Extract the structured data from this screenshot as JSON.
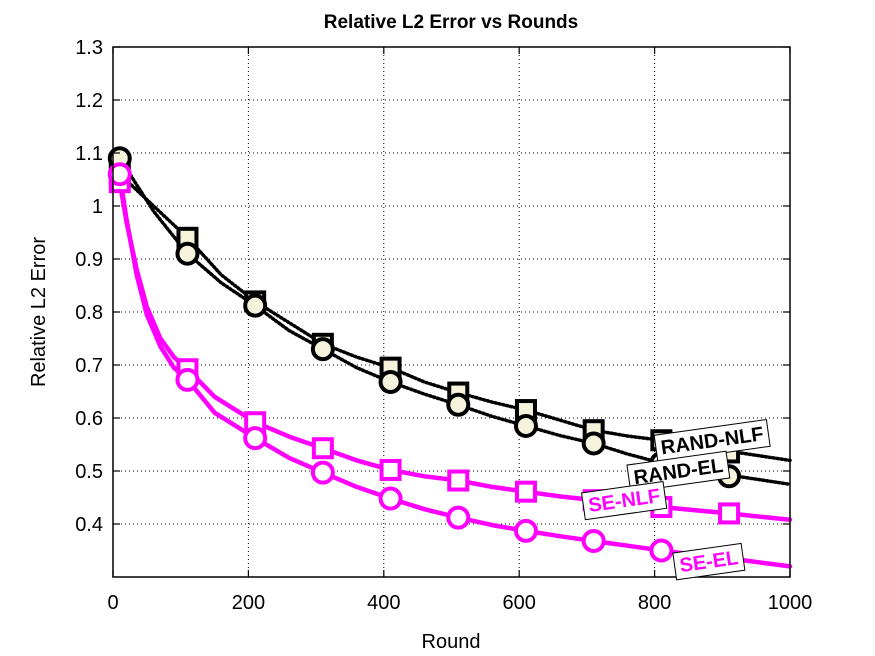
{
  "chart_data": {
    "type": "line",
    "title": "Relative L2 Error vs Rounds",
    "xlabel": "Round",
    "ylabel": "Relative L2 Error",
    "xlim": [
      0,
      1000
    ],
    "ylim": [
      0.3,
      1.3
    ],
    "xticks": [
      0,
      200,
      400,
      600,
      800,
      1000
    ],
    "yticks": [
      0.4,
      0.5,
      0.6,
      0.7,
      0.8,
      0.9,
      1,
      1.1,
      1.2,
      1.3
    ],
    "grid": true,
    "series": [
      {
        "name": "RAND-NLF",
        "color": "#000000",
        "line_style": "dotted",
        "marker": "square",
        "marker_fill": "#f5f3dc",
        "x": [
          10,
          110,
          210,
          310,
          410,
          510,
          610,
          710,
          810,
          910
        ],
        "values": [
          1.06,
          0.94,
          0.82,
          0.74,
          0.695,
          0.648,
          0.615,
          0.577,
          0.558,
          0.535
        ],
        "curve": [
          [
            10,
            1.06
          ],
          [
            60,
            1.0
          ],
          [
            110,
            0.94
          ],
          [
            160,
            0.87
          ],
          [
            210,
            0.82
          ],
          [
            260,
            0.78
          ],
          [
            310,
            0.74
          ],
          [
            360,
            0.715
          ],
          [
            410,
            0.695
          ],
          [
            460,
            0.668
          ],
          [
            510,
            0.648
          ],
          [
            560,
            0.63
          ],
          [
            610,
            0.615
          ],
          [
            660,
            0.596
          ],
          [
            710,
            0.577
          ],
          [
            760,
            0.566
          ],
          [
            810,
            0.558
          ],
          [
            870,
            0.545
          ],
          [
            1000,
            0.52
          ]
        ]
      },
      {
        "name": "RAND-EL",
        "color": "#000000",
        "line_style": "dotted",
        "marker": "circle",
        "marker_fill": "#f5f3dc",
        "x": [
          10,
          110,
          210,
          310,
          410,
          510,
          610,
          710,
          810,
          910
        ],
        "values": [
          1.09,
          0.91,
          0.812,
          0.73,
          0.668,
          0.625,
          0.585,
          0.552,
          0.515,
          0.49
        ],
        "curve": [
          [
            10,
            1.09
          ],
          [
            60,
            0.99
          ],
          [
            110,
            0.91
          ],
          [
            160,
            0.855
          ],
          [
            210,
            0.812
          ],
          [
            260,
            0.765
          ],
          [
            310,
            0.73
          ],
          [
            360,
            0.695
          ],
          [
            410,
            0.668
          ],
          [
            460,
            0.645
          ],
          [
            510,
            0.625
          ],
          [
            560,
            0.603
          ],
          [
            610,
            0.585
          ],
          [
            660,
            0.567
          ],
          [
            710,
            0.552
          ],
          [
            760,
            0.532
          ],
          [
            810,
            0.515
          ],
          [
            870,
            0.5
          ],
          [
            1000,
            0.475
          ]
        ]
      },
      {
        "name": "SE-NLF",
        "color": "#ff00ff",
        "line_style": "solid",
        "marker": "square",
        "marker_fill": "#ffffff",
        "x": [
          10,
          110,
          210,
          310,
          410,
          510,
          610,
          710,
          810,
          910
        ],
        "values": [
          1.045,
          0.692,
          0.592,
          0.543,
          0.502,
          0.482,
          0.461,
          0.445,
          0.432,
          0.42
        ],
        "curve": [
          [
            5,
            1.055
          ],
          [
            10,
            1.045
          ],
          [
            20,
            0.97
          ],
          [
            35,
            0.88
          ],
          [
            50,
            0.81
          ],
          [
            70,
            0.75
          ],
          [
            90,
            0.715
          ],
          [
            110,
            0.692
          ],
          [
            150,
            0.64
          ],
          [
            210,
            0.592
          ],
          [
            260,
            0.565
          ],
          [
            310,
            0.543
          ],
          [
            360,
            0.52
          ],
          [
            410,
            0.502
          ],
          [
            460,
            0.49
          ],
          [
            510,
            0.482
          ],
          [
            560,
            0.47
          ],
          [
            610,
            0.461
          ],
          [
            660,
            0.452
          ],
          [
            710,
            0.445
          ],
          [
            760,
            0.438
          ],
          [
            810,
            0.432
          ],
          [
            860,
            0.426
          ],
          [
            910,
            0.42
          ],
          [
            1000,
            0.408
          ]
        ]
      },
      {
        "name": "SE-EL",
        "color": "#ff00ff",
        "line_style": "solid",
        "marker": "circle",
        "marker_fill": "#ffffff",
        "x": [
          10,
          110,
          210,
          310,
          410,
          510,
          610,
          710,
          810,
          910
        ],
        "values": [
          1.06,
          0.672,
          0.562,
          0.497,
          0.448,
          0.412,
          0.387,
          0.368,
          0.35,
          0.335
        ],
        "curve": [
          [
            5,
            1.07
          ],
          [
            10,
            1.06
          ],
          [
            20,
            0.975
          ],
          [
            35,
            0.87
          ],
          [
            50,
            0.795
          ],
          [
            70,
            0.735
          ],
          [
            90,
            0.695
          ],
          [
            110,
            0.672
          ],
          [
            150,
            0.61
          ],
          [
            210,
            0.562
          ],
          [
            260,
            0.525
          ],
          [
            310,
            0.497
          ],
          [
            360,
            0.47
          ],
          [
            410,
            0.448
          ],
          [
            460,
            0.428
          ],
          [
            510,
            0.412
          ],
          [
            560,
            0.398
          ],
          [
            610,
            0.387
          ],
          [
            660,
            0.377
          ],
          [
            710,
            0.368
          ],
          [
            760,
            0.359
          ],
          [
            810,
            0.35
          ],
          [
            860,
            0.342
          ],
          [
            910,
            0.335
          ],
          [
            1000,
            0.32
          ]
        ]
      }
    ],
    "annotations": [
      {
        "series": "RAND-NLF",
        "text": "RAND-NLF",
        "color": "#000000",
        "x": 885,
        "y": 0.558,
        "angle": -8
      },
      {
        "series": "RAND-EL",
        "text": "RAND-EL",
        "color": "#000000",
        "x": 835,
        "y": 0.5,
        "angle": -8
      },
      {
        "series": "SE-NLF",
        "text": "SE-NLF",
        "color": "#ff00ff",
        "x": 755,
        "y": 0.445,
        "angle": -8
      },
      {
        "series": "SE-EL",
        "text": "SE-EL",
        "color": "#ff00ff",
        "x": 880,
        "y": 0.33,
        "angle": -8
      }
    ]
  }
}
